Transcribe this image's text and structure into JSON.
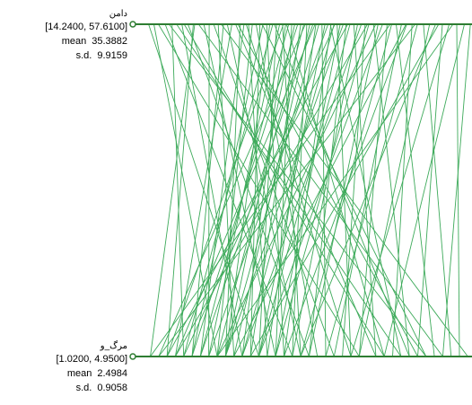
{
  "chart_data": {
    "type": "parallel_coordinates",
    "line_color": "#3daa5a",
    "axis_color": "#2e7d32",
    "axes": [
      {
        "name": "دامن",
        "range_text": "[14.2400, 57.6100]",
        "min": 14.24,
        "max": 57.61,
        "mean_label": "mean",
        "mean": "35.3882",
        "sd_label": "s.d.",
        "sd": "9.9159"
      },
      {
        "name": "مرگ_و",
        "range_text": "[1.0200, 4.9500]",
        "min": 1.02,
        "max": 4.95,
        "mean_label": "mean",
        "mean": "2.4984",
        "sd_label": "s.d.",
        "sd": "0.9058"
      }
    ],
    "records": [
      [
        14.9,
        2.4
      ],
      [
        15.6,
        1.9
      ],
      [
        16.2,
        3.6
      ],
      [
        17.1,
        2.8
      ],
      [
        18.0,
        1.5
      ],
      [
        18.6,
        4.1
      ],
      [
        19.3,
        2.2
      ],
      [
        20.1,
        3.0
      ],
      [
        20.8,
        1.3
      ],
      [
        21.5,
        4.6
      ],
      [
        22.2,
        2.6
      ],
      [
        22.9,
        1.8
      ],
      [
        23.5,
        3.3
      ],
      [
        24.1,
        2.1
      ],
      [
        24.8,
        1.6
      ],
      [
        25.3,
        2.9
      ],
      [
        25.9,
        1.4
      ],
      [
        26.4,
        3.8
      ],
      [
        27.0,
        2.0
      ],
      [
        27.5,
        1.7
      ],
      [
        28.1,
        2.5
      ],
      [
        28.6,
        1.9
      ],
      [
        29.1,
        3.1
      ],
      [
        29.6,
        2.3
      ],
      [
        30.0,
        1.6
      ],
      [
        30.5,
        2.7
      ],
      [
        30.9,
        2.0
      ],
      [
        31.3,
        1.5
      ],
      [
        31.8,
        2.4
      ],
      [
        32.2,
        1.8
      ],
      [
        32.6,
        2.9
      ],
      [
        33.0,
        2.2
      ],
      [
        33.4,
        1.7
      ],
      [
        33.8,
        2.6
      ],
      [
        34.2,
        2.0
      ],
      [
        34.6,
        1.6
      ],
      [
        35.0,
        2.3
      ],
      [
        35.4,
        1.9
      ],
      [
        35.8,
        2.8
      ],
      [
        36.2,
        2.1
      ],
      [
        36.6,
        1.7
      ],
      [
        37.0,
        2.5
      ],
      [
        37.4,
        2.0
      ],
      [
        37.8,
        3.2
      ],
      [
        38.2,
        2.4
      ],
      [
        38.6,
        1.8
      ],
      [
        39.0,
        2.7
      ],
      [
        39.4,
        2.2
      ],
      [
        39.8,
        3.5
      ],
      [
        40.2,
        2.6
      ],
      [
        40.6,
        2.0
      ],
      [
        41.0,
        3.0
      ],
      [
        41.5,
        2.4
      ],
      [
        42.0,
        3.8
      ],
      [
        42.5,
        2.8
      ],
      [
        43.0,
        2.2
      ],
      [
        43.5,
        3.4
      ],
      [
        44.0,
        2.6
      ],
      [
        44.6,
        4.2
      ],
      [
        45.2,
        3.0
      ],
      [
        45.8,
        2.4
      ],
      [
        46.4,
        3.6
      ],
      [
        47.0,
        2.9
      ],
      [
        47.6,
        4.5
      ],
      [
        48.3,
        3.3
      ],
      [
        49.0,
        2.7
      ],
      [
        49.7,
        4.0
      ],
      [
        50.4,
        3.2
      ],
      [
        51.2,
        4.7
      ],
      [
        52.0,
        3.6
      ],
      [
        52.8,
        2.9
      ],
      [
        53.7,
        4.3
      ],
      [
        54.6,
        3.5
      ],
      [
        55.6,
        4.8
      ],
      [
        56.6,
        3.9
      ],
      [
        57.4,
        4.6
      ],
      [
        29.9,
        4.4
      ],
      [
        26.7,
        4.3
      ],
      [
        31.5,
        4.2
      ],
      [
        35.6,
        1.2
      ],
      [
        41.2,
        1.3
      ],
      [
        46.8,
        1.1
      ],
      [
        21.0,
        1.1
      ],
      [
        24.5,
        4.9
      ],
      [
        33.1,
        3.9
      ],
      [
        38.9,
        4.1
      ],
      [
        43.8,
        1.4
      ],
      [
        50.1,
        1.2
      ],
      [
        19.6,
        3.9
      ],
      [
        27.8,
        3.5
      ],
      [
        36.9,
        1.4
      ],
      [
        44.9,
        1.9
      ],
      [
        53.2,
        2.3
      ],
      [
        17.6,
        4.4
      ],
      [
        32.7,
        1.3
      ],
      [
        39.5,
        1.5
      ],
      [
        48.9,
        2.1
      ],
      [
        55.1,
        1.9
      ]
    ]
  }
}
